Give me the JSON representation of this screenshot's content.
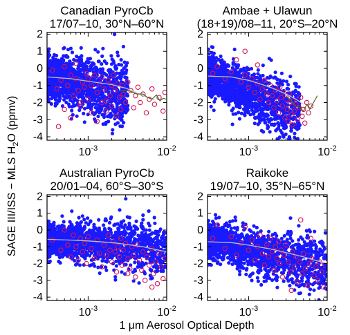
{
  "figure": {
    "ylabel": "SAGE III/ISS − MLS H",
    "ylabel_sub": "2",
    "ylabel_tail": "O (ppmv)",
    "xlabel": "1 μm Aerosol Optical Depth"
  },
  "colors": {
    "points": "#1a1aff",
    "highlight": "#d0155a",
    "fit": "#c0c0c0",
    "median": "#4a6b1c"
  },
  "chart_data": [
    {
      "type": "scatter",
      "title_line1": "Canadian PyroCb",
      "title_line2": "17/07–10, 30°N–60°N",
      "xscale": "log",
      "xlim": [
        0.0003,
        0.01
      ],
      "ylim": [
        -4.2,
        2.1
      ],
      "xticks": [
        0.001,
        0.01
      ],
      "xtick_labels": [
        {
          "base": "10",
          "exp": "-3"
        },
        {
          "base": "10",
          "exp": "-2"
        }
      ],
      "yticks": [
        2,
        1,
        0,
        -1,
        -2,
        -3,
        -4
      ],
      "cloud": {
        "x_range": [
          0.0003,
          0.0032
        ],
        "y_center": -0.45,
        "y_spread": 1.05,
        "slope": -0.6
      },
      "fit_line": {
        "x": [
          0.0003,
          0.0006,
          0.001,
          0.002,
          0.003,
          0.005,
          0.007
        ],
        "y": [
          -0.5,
          -0.6,
          -0.75,
          -0.95,
          -1.15,
          -1.6,
          -1.85
        ]
      },
      "median_line": {
        "x": [
          0.0025,
          0.0033,
          0.0042,
          0.005,
          0.0057,
          0.0065,
          0.0074,
          0.0082,
          0.009,
          0.0098
        ],
        "y": [
          -1.3,
          -1.3,
          -1.5,
          -1.5,
          -1.7,
          -1.8,
          -1.55,
          -1.9,
          -1.75,
          -1.8
        ]
      },
      "highlighted": [
        [
          0.00035,
          -0.1
        ],
        [
          0.0004,
          -1.2
        ],
        [
          0.00045,
          -0.7
        ],
        [
          0.0005,
          -2.4
        ],
        [
          0.0005,
          0.1
        ],
        [
          0.00055,
          -1.0
        ],
        [
          0.0006,
          -0.4
        ],
        [
          0.0006,
          -2.9
        ],
        [
          0.00065,
          -1.6
        ],
        [
          0.0007,
          -0.6
        ],
        [
          0.0007,
          0.3
        ],
        [
          0.00075,
          -1.3
        ],
        [
          0.0008,
          -2.2
        ],
        [
          0.00085,
          -0.8
        ],
        [
          0.0009,
          -1.1
        ],
        [
          0.00095,
          -0.3
        ],
        [
          0.001,
          -1.8
        ],
        [
          0.001,
          -0.6
        ],
        [
          0.0011,
          -2.6
        ],
        [
          0.0011,
          -1.0
        ],
        [
          0.0012,
          -0.4
        ],
        [
          0.0013,
          -1.4
        ],
        [
          0.0013,
          -3.1
        ],
        [
          0.0014,
          -0.9
        ],
        [
          0.0015,
          -2.0
        ],
        [
          0.0015,
          -0.5
        ],
        [
          0.0016,
          -1.2
        ],
        [
          0.0017,
          -2.5
        ],
        [
          0.0018,
          -0.7
        ],
        [
          0.0019,
          -1.6
        ],
        [
          0.002,
          -1.0
        ],
        [
          0.002,
          -2.2
        ],
        [
          0.0021,
          -0.4
        ],
        [
          0.0022,
          -1.3
        ],
        [
          0.0023,
          -2.8
        ],
        [
          0.0024,
          -0.9
        ],
        [
          0.0025,
          -1.7
        ],
        [
          0.0026,
          -2.4
        ],
        [
          0.0027,
          -1.0
        ],
        [
          0.0028,
          -1.5
        ],
        [
          0.003,
          -2.0
        ],
        [
          0.0032,
          -0.8
        ],
        [
          0.0035,
          -1.3
        ],
        [
          0.0038,
          -2.3
        ],
        [
          0.004,
          -1.6
        ],
        [
          0.0043,
          -1.1
        ],
        [
          0.0046,
          -2.0
        ],
        [
          0.005,
          -1.5
        ],
        [
          0.0055,
          -2.6
        ],
        [
          0.006,
          -1.8
        ],
        [
          0.0065,
          -1.2
        ],
        [
          0.007,
          -2.1
        ],
        [
          0.008,
          -1.7
        ],
        [
          0.009,
          -2.5
        ],
        [
          0.0095,
          -1.4
        ],
        [
          0.00042,
          -3.4
        ],
        [
          0.0008,
          -2.0
        ],
        [
          0.0017,
          -1.9
        ]
      ]
    },
    {
      "type": "scatter",
      "title_line1": "Ambae + Ulawun",
      "title_line2": "(18+19)/08–11, 20°S–20°N",
      "xscale": "log",
      "xlim": [
        0.0003,
        0.01
      ],
      "ylim": [
        -4.2,
        2.1
      ],
      "xticks": [
        0.001,
        0.01
      ],
      "xtick_labels": [
        {
          "base": "10",
          "exp": "-3"
        },
        {
          "base": "10",
          "exp": "-2"
        }
      ],
      "yticks": [
        2,
        1,
        0,
        -1,
        -2,
        -3,
        -4
      ],
      "cloud": {
        "x_range": [
          0.0003,
          0.0045
        ],
        "y_center": -0.35,
        "y_spread": 0.95,
        "slope": -1.3
      },
      "fit_line": {
        "x": [
          0.0003,
          0.0006,
          0.001,
          0.0015,
          0.002,
          0.003,
          0.004,
          0.005
        ],
        "y": [
          -0.45,
          -0.5,
          -0.7,
          -0.95,
          -1.15,
          -1.5,
          -1.8,
          -2.1
        ]
      },
      "median_line": {
        "x": [
          0.003,
          0.0035,
          0.004,
          0.0045,
          0.005,
          0.0055,
          0.006,
          0.0067,
          0.0075
        ],
        "y": [
          -1.6,
          -1.9,
          -2.2,
          -2.3,
          -2.5,
          -2.1,
          -2.4,
          -2.0,
          -1.6
        ]
      },
      "highlighted": [
        [
          0.00035,
          -0.3
        ],
        [
          0.0004,
          0.1
        ],
        [
          0.0005,
          -0.6
        ],
        [
          0.0006,
          -0.2
        ],
        [
          0.0007,
          0.5
        ],
        [
          0.0008,
          -0.8
        ],
        [
          0.0009,
          -0.4
        ],
        [
          0.001,
          -1.1
        ],
        [
          0.0011,
          -0.6
        ],
        [
          0.0012,
          -1.4
        ],
        [
          0.0013,
          -0.9
        ],
        [
          0.0014,
          -1.8
        ],
        [
          0.0015,
          -1.2
        ],
        [
          0.0016,
          -0.7
        ],
        [
          0.0017,
          -1.5
        ],
        [
          0.0018,
          -2.0
        ],
        [
          0.0019,
          -1.0
        ],
        [
          0.002,
          -1.6
        ],
        [
          0.0021,
          -2.3
        ],
        [
          0.0022,
          -1.3
        ],
        [
          0.0023,
          -1.9
        ],
        [
          0.0024,
          -2.6
        ],
        [
          0.0025,
          -1.1
        ],
        [
          0.0026,
          -1.7
        ],
        [
          0.0027,
          -2.2
        ],
        [
          0.0028,
          -1.4
        ],
        [
          0.0029,
          -2.9
        ],
        [
          0.003,
          -1.8
        ],
        [
          0.0031,
          -2.4
        ],
        [
          0.0032,
          -3.1
        ],
        [
          0.0033,
          -1.5
        ],
        [
          0.0034,
          -2.0
        ],
        [
          0.0035,
          -2.7
        ],
        [
          0.0036,
          -3.3
        ],
        [
          0.0037,
          -1.9
        ],
        [
          0.0038,
          -2.5
        ],
        [
          0.004,
          -2.1
        ],
        [
          0.0042,
          -3.0
        ],
        [
          0.0044,
          -2.3
        ],
        [
          0.0046,
          -1.7
        ],
        [
          0.0048,
          -2.8
        ],
        [
          0.005,
          -2.4
        ],
        [
          0.0052,
          -3.2
        ],
        [
          0.0055,
          -2.0
        ],
        [
          0.0058,
          -2.6
        ],
        [
          0.0062,
          -2.2
        ],
        [
          0.0013,
          0.2
        ],
        [
          0.0009,
          1.0
        ]
      ]
    },
    {
      "type": "scatter",
      "title_line1": "Australian PyroCb",
      "title_line2": "20/01–04, 60°S–30°S",
      "xscale": "log",
      "xlim": [
        0.0003,
        0.01
      ],
      "ylim": [
        -4.2,
        2.1
      ],
      "xticks": [
        0.001,
        0.01
      ],
      "xtick_labels": [
        {
          "base": "10",
          "exp": "-3"
        },
        {
          "base": "10",
          "exp": "-2"
        }
      ],
      "yticks": [
        2,
        1,
        0,
        -1,
        -2,
        -3,
        -4
      ],
      "cloud": {
        "x_range": [
          0.0003,
          0.01
        ],
        "y_center": -0.55,
        "y_spread": 0.85,
        "slope": -0.35
      },
      "fit_line": {
        "x": [
          0.0003,
          0.0006,
          0.001,
          0.002,
          0.003,
          0.005,
          0.007,
          0.01
        ],
        "y": [
          -0.55,
          -0.6,
          -0.65,
          -0.75,
          -0.85,
          -1.0,
          -1.15,
          -1.3
        ]
      },
      "median_line": {
        "x": [],
        "y": []
      },
      "highlighted": [
        [
          0.00035,
          -0.6
        ],
        [
          0.00045,
          -1.2
        ],
        [
          0.0005,
          0.0
        ],
        [
          0.00055,
          -0.9
        ],
        [
          0.0006,
          -1.6
        ],
        [
          0.00065,
          -0.3
        ],
        [
          0.0007,
          -1.0
        ],
        [
          0.00075,
          -1.8
        ],
        [
          0.0008,
          -0.5
        ],
        [
          0.00085,
          -1.3
        ],
        [
          0.0009,
          -0.8
        ],
        [
          0.00095,
          -2.0
        ],
        [
          0.001,
          -0.4
        ],
        [
          0.0011,
          -1.1
        ],
        [
          0.0012,
          -1.7
        ],
        [
          0.0013,
          -0.6
        ],
        [
          0.0014,
          -1.4
        ],
        [
          0.0015,
          -2.2
        ],
        [
          0.0016,
          -0.9
        ],
        [
          0.0017,
          -1.5
        ],
        [
          0.0018,
          -0.3
        ],
        [
          0.0019,
          -1.2
        ],
        [
          0.002,
          -1.9
        ],
        [
          0.0021,
          -0.7
        ],
        [
          0.0022,
          -1.3
        ],
        [
          0.0023,
          -2.5
        ],
        [
          0.0024,
          -1.0
        ],
        [
          0.0025,
          -1.6
        ],
        [
          0.0026,
          -0.5
        ],
        [
          0.0027,
          -2.1
        ],
        [
          0.0028,
          -1.2
        ],
        [
          0.003,
          -0.8
        ],
        [
          0.0032,
          -1.7
        ],
        [
          0.0034,
          -2.3
        ],
        [
          0.0036,
          -1.0
        ],
        [
          0.0038,
          -1.5
        ],
        [
          0.004,
          -2.8
        ],
        [
          0.0042,
          -0.9
        ],
        [
          0.0045,
          -1.8
        ],
        [
          0.0048,
          -2.4
        ],
        [
          0.005,
          -1.3
        ],
        [
          0.0053,
          -3.0
        ],
        [
          0.0056,
          -1.6
        ],
        [
          0.006,
          -2.1
        ],
        [
          0.0064,
          -1.1
        ],
        [
          0.0068,
          -2.6
        ],
        [
          0.0072,
          -1.9
        ],
        [
          0.0076,
          -3.2
        ],
        [
          0.008,
          -1.4
        ],
        [
          0.0085,
          -2.2
        ],
        [
          0.009,
          -2.9
        ],
        [
          0.0095,
          -1.7
        ],
        [
          0.0032,
          -2.6
        ],
        [
          0.0065,
          -3.4
        ]
      ]
    },
    {
      "type": "scatter",
      "title_line1": "Raikoke",
      "title_line2": "19/07–10, 35°N–65°N",
      "xscale": "log",
      "xlim": [
        0.0003,
        0.01
      ],
      "ylim": [
        -4.2,
        2.1
      ],
      "xticks": [
        0.001,
        0.01
      ],
      "xtick_labels": [
        {
          "base": "10",
          "exp": "-3"
        },
        {
          "base": "10",
          "exp": "-2"
        }
      ],
      "yticks": [
        2,
        1,
        0,
        -1,
        -2,
        -3,
        -4
      ],
      "cloud": {
        "x_range": [
          0.0003,
          0.01
        ],
        "y_center": -0.6,
        "y_spread": 0.9,
        "slope": -0.9
      },
      "fit_line": {
        "x": [
          0.0003,
          0.0006,
          0.001,
          0.002,
          0.003,
          0.005,
          0.007,
          0.01
        ],
        "y": [
          -0.7,
          -0.75,
          -0.9,
          -1.15,
          -1.35,
          -1.6,
          -1.8,
          -2.0
        ]
      },
      "median_line": {
        "x": [],
        "y": []
      },
      "highlighted": [
        [
          0.00035,
          -0.5
        ],
        [
          0.0004,
          0.3
        ],
        [
          0.0005,
          -1.1
        ],
        [
          0.0006,
          -0.4
        ],
        [
          0.0007,
          -1.5
        ],
        [
          0.0008,
          -0.8
        ],
        [
          0.0009,
          0.2
        ],
        [
          0.001,
          -1.2
        ],
        [
          0.0011,
          -0.6
        ],
        [
          0.0012,
          -1.8
        ],
        [
          0.0013,
          -1.0
        ],
        [
          0.0014,
          -0.3
        ],
        [
          0.0015,
          -1.4
        ],
        [
          0.0016,
          -2.1
        ],
        [
          0.0017,
          -0.9
        ],
        [
          0.0018,
          -1.6
        ],
        [
          0.0019,
          -0.5
        ],
        [
          0.002,
          -1.3
        ],
        [
          0.0021,
          -2.4
        ],
        [
          0.0022,
          -1.0
        ],
        [
          0.0023,
          -1.7
        ],
        [
          0.0024,
          -0.7
        ],
        [
          0.0025,
          -2.0
        ],
        [
          0.0026,
          -1.2
        ],
        [
          0.0027,
          -2.8
        ],
        [
          0.0028,
          -1.5
        ],
        [
          0.003,
          -0.9
        ],
        [
          0.0032,
          -1.9
        ],
        [
          0.0034,
          -2.5
        ],
        [
          0.0036,
          -1.3
        ],
        [
          0.0038,
          -2.2
        ],
        [
          0.004,
          -1.6
        ],
        [
          0.0042,
          -3.1
        ],
        [
          0.0045,
          -1.9
        ],
        [
          0.0048,
          -2.6
        ],
        [
          0.005,
          -1.4
        ],
        [
          0.0053,
          -2.3
        ],
        [
          0.0056,
          -3.3
        ],
        [
          0.006,
          -2.0
        ],
        [
          0.0064,
          -1.7
        ],
        [
          0.0068,
          -2.7
        ],
        [
          0.0072,
          -2.2
        ],
        [
          0.0076,
          -3.0
        ],
        [
          0.008,
          -1.9
        ],
        [
          0.0085,
          -2.5
        ],
        [
          0.009,
          -3.4
        ],
        [
          0.0095,
          -2.1
        ],
        [
          0.0035,
          -3.6
        ],
        [
          0.0046,
          0.6
        ],
        [
          0.0062,
          -0.5
        ]
      ]
    }
  ]
}
